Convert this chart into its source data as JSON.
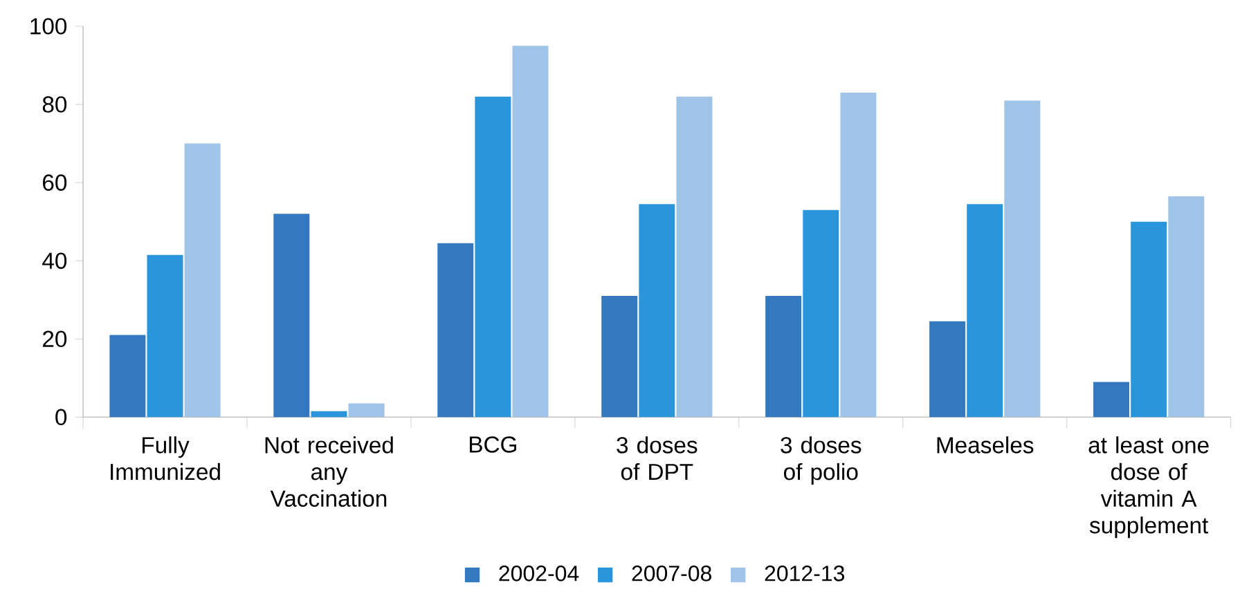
{
  "chart_data": {
    "type": "bar",
    "categories": [
      "Fully Immunized",
      "Not received any Vaccination",
      "BCG",
      "3 doses of DPT",
      "3 doses of polio",
      "Measeles",
      "at least one dose of vitamin A supplement"
    ],
    "series": [
      {
        "name": "2002-04",
        "color": "#3479c0",
        "values": [
          21,
          52,
          44.5,
          31,
          31,
          24.5,
          9
        ]
      },
      {
        "name": "2007-08",
        "color": "#2b95dc",
        "values": [
          41.5,
          1.5,
          82,
          54.5,
          53,
          54.5,
          50
        ]
      },
      {
        "name": "2012-13",
        "color": "#a0c4e8",
        "values": [
          70,
          3.5,
          95,
          82,
          83,
          81,
          56.5
        ]
      }
    ],
    "ylim": [
      0,
      100
    ],
    "yticks": [
      0,
      20,
      40,
      60,
      80,
      100
    ],
    "legend": "bottom"
  }
}
